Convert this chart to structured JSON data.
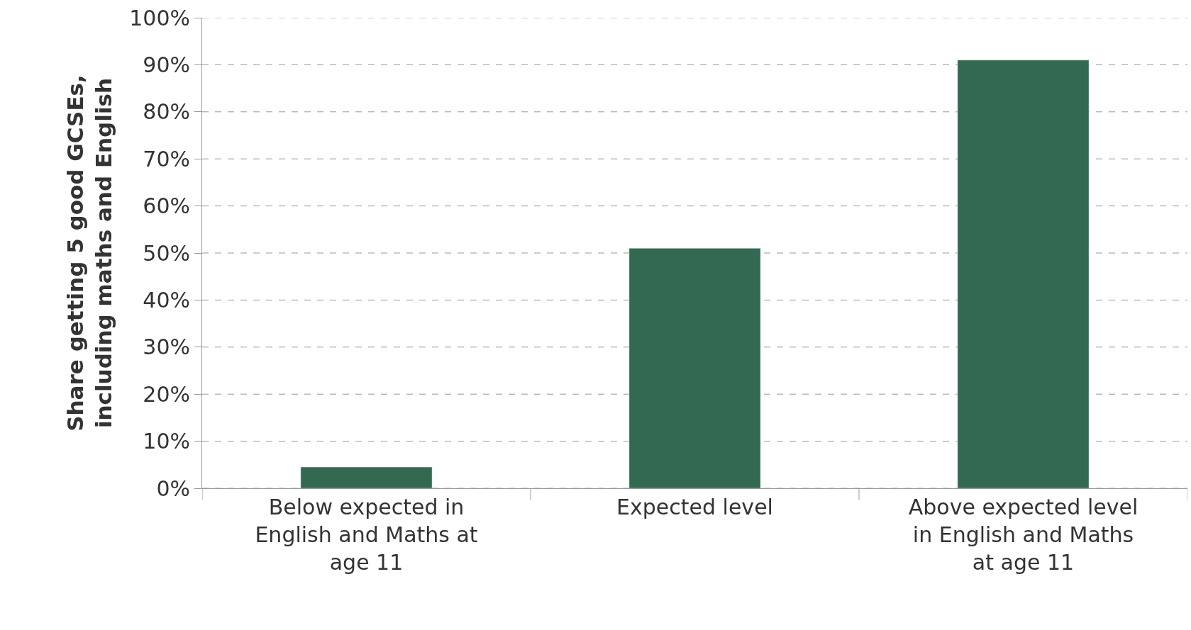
{
  "chart_data": {
    "type": "bar",
    "ylabel": "Share getting 5 good GCSEs, including maths and English",
    "categories": [
      "Below expected in English and Maths at age 11",
      "Expected level",
      "Above expected level in English and Maths at age 11"
    ],
    "values": [
      4.5,
      51,
      91
    ],
    "color": "#336950",
    "ylim": [
      0,
      100
    ],
    "yticks": [
      {
        "value": 0,
        "label": "0%"
      },
      {
        "value": 10,
        "label": "10%"
      },
      {
        "value": 20,
        "label": "20%"
      },
      {
        "value": 30,
        "label": "30%"
      },
      {
        "value": 40,
        "label": "40%"
      },
      {
        "value": 50,
        "label": "50%"
      },
      {
        "value": 60,
        "label": "60%"
      },
      {
        "value": 70,
        "label": "70%"
      },
      {
        "value": 80,
        "label": "80%"
      },
      {
        "value": 90,
        "label": "90%"
      },
      {
        "value": 100,
        "label": "100%"
      }
    ],
    "grid": "y"
  }
}
